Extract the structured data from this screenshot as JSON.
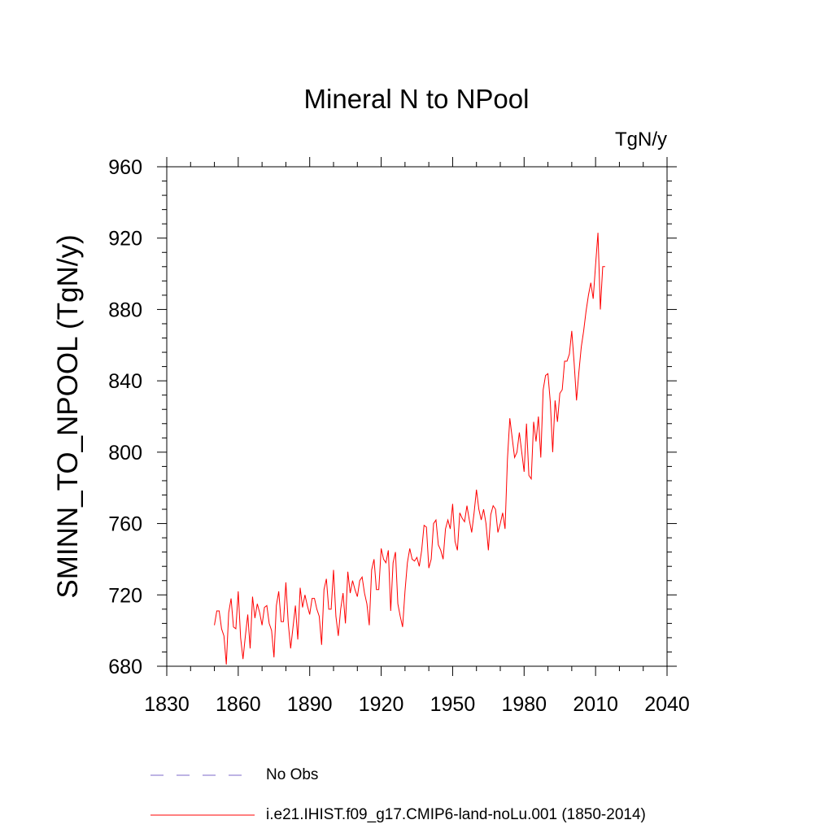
{
  "chart_data": {
    "type": "line",
    "title": "Mineral N to NPool",
    "units_label": "TgN/y",
    "ylabel": "SMINN_TO_NPOOL  (TgN/y)",
    "xlabel": "",
    "xlim": [
      1830,
      2040
    ],
    "ylim": [
      680,
      960
    ],
    "xticks": [
      1830,
      1860,
      1890,
      1920,
      1950,
      1980,
      2010,
      2040
    ],
    "yticks": [
      680,
      720,
      760,
      800,
      840,
      880,
      920,
      960
    ],
    "xminor_step": 10,
    "yminor_step": 8,
    "grid": false,
    "legend_position": "bottom",
    "series": [
      {
        "name": "No Obs",
        "color": "#7b68c8",
        "dash": "dashed",
        "x": [],
        "y": []
      },
      {
        "name": "i.e21.IHIST.f09_g17.CMIP6-land-noLu.001 (1850-2014)",
        "color": "#ff0000",
        "dash": "solid",
        "x": [
          1850,
          1851,
          1852,
          1853,
          1854,
          1855,
          1856,
          1857,
          1858,
          1859,
          1860,
          1861,
          1862,
          1863,
          1864,
          1865,
          1866,
          1867,
          1868,
          1869,
          1870,
          1871,
          1872,
          1873,
          1874,
          1875,
          1876,
          1877,
          1878,
          1879,
          1880,
          1881,
          1882,
          1883,
          1884,
          1885,
          1886,
          1887,
          1888,
          1889,
          1890,
          1891,
          1892,
          1893,
          1894,
          1895,
          1896,
          1897,
          1898,
          1899,
          1900,
          1901,
          1902,
          1903,
          1904,
          1905,
          1906,
          1907,
          1908,
          1909,
          1910,
          1911,
          1912,
          1913,
          1914,
          1915,
          1916,
          1917,
          1918,
          1919,
          1920,
          1921,
          1922,
          1923,
          1924,
          1925,
          1926,
          1927,
          1928,
          1929,
          1930,
          1931,
          1932,
          1933,
          1934,
          1935,
          1936,
          1937,
          1938,
          1939,
          1940,
          1941,
          1942,
          1943,
          1944,
          1945,
          1946,
          1947,
          1948,
          1949,
          1950,
          1951,
          1952,
          1953,
          1954,
          1955,
          1956,
          1957,
          1958,
          1959,
          1960,
          1961,
          1962,
          1963,
          1964,
          1965,
          1966,
          1967,
          1968,
          1969,
          1970,
          1971,
          1972,
          1973,
          1974,
          1975,
          1976,
          1977,
          1978,
          1979,
          1980,
          1981,
          1982,
          1983,
          1984,
          1985,
          1986,
          1987,
          1988,
          1989,
          1990,
          1991,
          1992,
          1993,
          1994,
          1995,
          1996,
          1997,
          1998,
          1999,
          2000,
          2001,
          2002,
          2003,
          2004,
          2005,
          2006,
          2007,
          2008,
          2009,
          2010,
          2011,
          2012,
          2013,
          2014
        ],
        "y": [
          703,
          711,
          711,
          701,
          697,
          681,
          710,
          718,
          702,
          701,
          722,
          696,
          684,
          697,
          709,
          690,
          719,
          707,
          715,
          710,
          703,
          713,
          714,
          704,
          700,
          685,
          714,
          722,
          705,
          705,
          727,
          704,
          690,
          702,
          714,
          695,
          724,
          713,
          720,
          714,
          709,
          718,
          718,
          712,
          708,
          692,
          723,
          729,
          712,
          712,
          734,
          708,
          697,
          712,
          721,
          704,
          733,
          721,
          728,
          723,
          719,
          728,
          730,
          721,
          715,
          703,
          734,
          740,
          723,
          723,
          746,
          740,
          738,
          745,
          711,
          738,
          744,
          715,
          708,
          702,
          722,
          738,
          746,
          740,
          739,
          741,
          736,
          745,
          759,
          758,
          735,
          740,
          760,
          762,
          748,
          745,
          740,
          757,
          762,
          757,
          771,
          750,
          745,
          766,
          763,
          761,
          770,
          762,
          755,
          766,
          779,
          768,
          762,
          768,
          760,
          745,
          765,
          770,
          768,
          755,
          760,
          766,
          757,
          796,
          819,
          808,
          797,
          800,
          811,
          800,
          789,
          816,
          787,
          785,
          817,
          806,
          820,
          797,
          835,
          843,
          844,
          828,
          800,
          829,
          817,
          833,
          835,
          851,
          851,
          855,
          868,
          850,
          829,
          845,
          859,
          868,
          879,
          888,
          895,
          886,
          905,
          923,
          880,
          904,
          904
        ]
      }
    ]
  }
}
